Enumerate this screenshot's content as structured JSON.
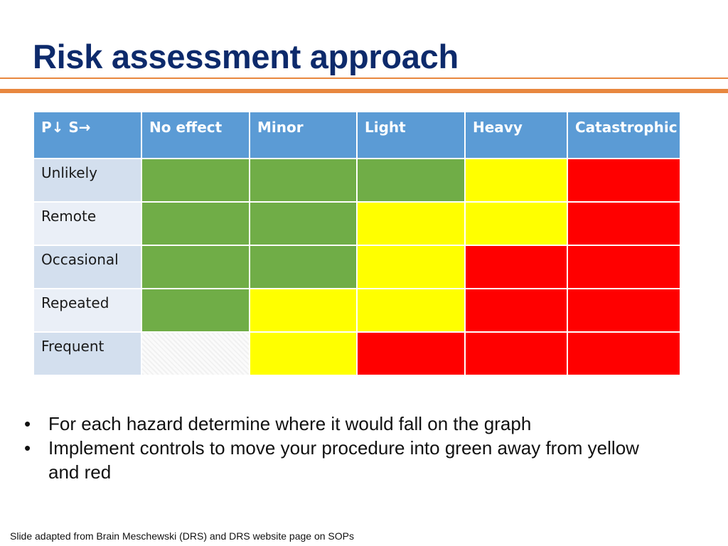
{
  "slide": {
    "title": "Risk assessment approach",
    "accent_color": "#e8873f",
    "title_color": "#0d2a6b"
  },
  "matrix": {
    "corner_label": "P↓ S→",
    "severity_headers": [
      "No effect",
      "Minor",
      "Light",
      "Heavy",
      "Catastrophic"
    ],
    "probability_rows": [
      {
        "label": "Unlikely",
        "cells": [
          "green",
          "green",
          "green",
          "yellow",
          "red"
        ]
      },
      {
        "label": "Remote",
        "cells": [
          "green",
          "green",
          "yellow",
          "yellow",
          "red"
        ]
      },
      {
        "label": "Occasional",
        "cells": [
          "green",
          "green",
          "yellow",
          "red",
          "red"
        ]
      },
      {
        "label": "Repeated",
        "cells": [
          "green",
          "yellow",
          "yellow",
          "red",
          "red"
        ]
      },
      {
        "label": "Frequent",
        "cells": [
          "blank",
          "yellow",
          "red",
          "red",
          "red"
        ]
      }
    ],
    "colors": {
      "green": "#70ad47",
      "yellow": "#ffff00",
      "red": "#ff0000",
      "header": "#5b9bd5"
    }
  },
  "bullets": [
    "For each hazard determine where it would fall on the graph",
    "Implement controls to move your procedure into green away from yellow and red"
  ],
  "footer": "Slide adapted from Brain Meschewski (DRS) and DRS website page on SOPs"
}
